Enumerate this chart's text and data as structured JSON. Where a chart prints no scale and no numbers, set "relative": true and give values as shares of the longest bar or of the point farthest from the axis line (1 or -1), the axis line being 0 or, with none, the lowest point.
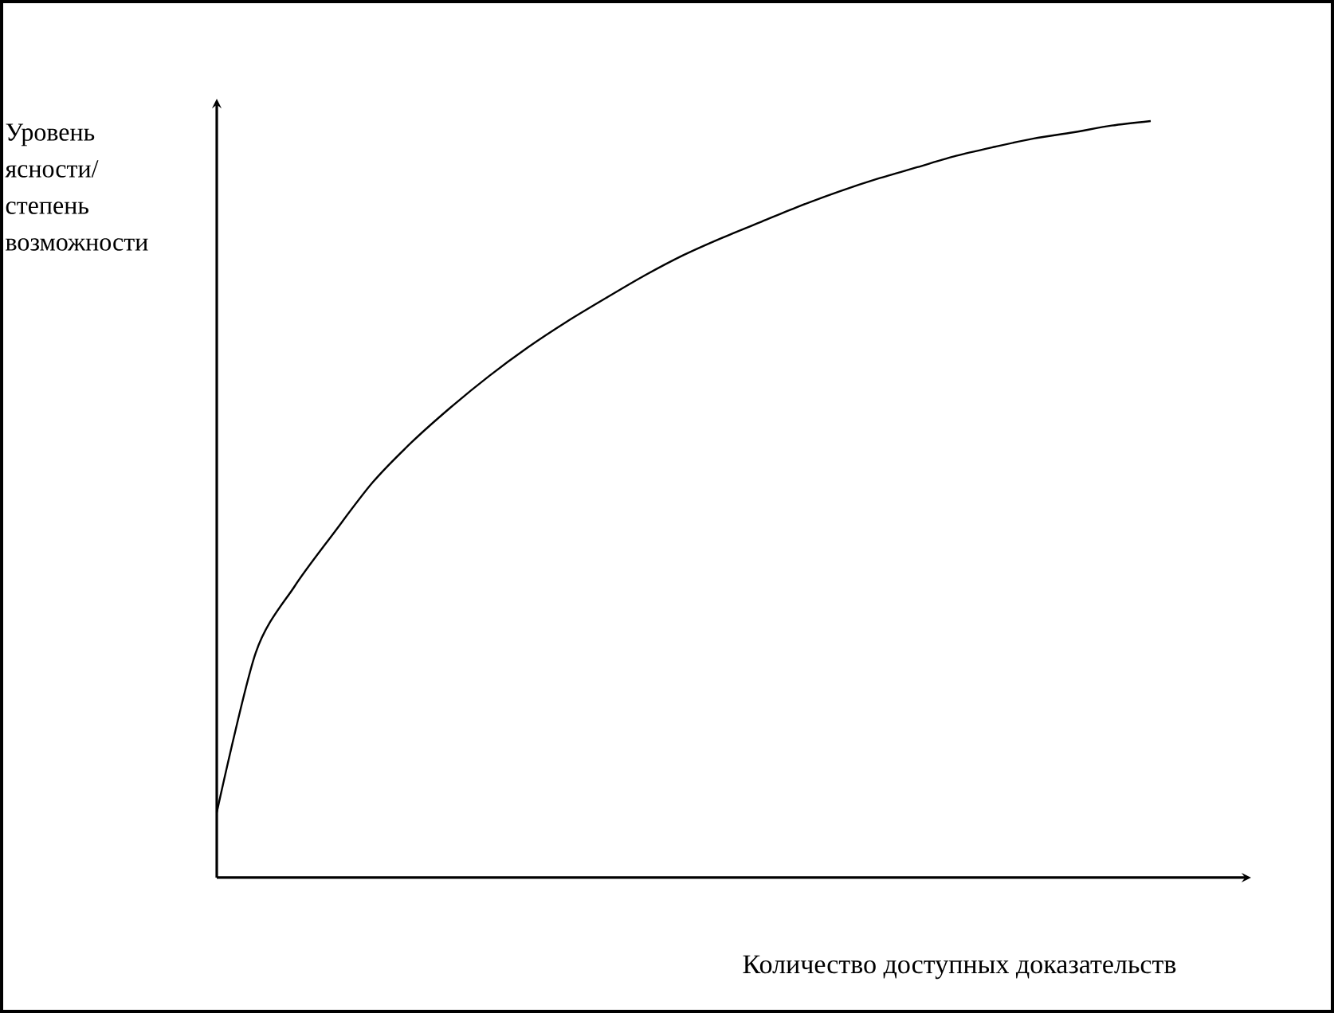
{
  "chart_data": {
    "type": "line",
    "relative": true,
    "xlabel": "Количество доступных доказательств",
    "ylabel": "Уровень ясности/ степень возможности",
    "categories": [
      null,
      null,
      null,
      null,
      null,
      null,
      null,
      null,
      null,
      null,
      null,
      null,
      null,
      null,
      null,
      null,
      null,
      null,
      null,
      null,
      null,
      null,
      null,
      null,
      null
    ],
    "values": [
      0.086,
      0.297,
      0.385,
      0.455,
      0.522,
      0.575,
      0.621,
      0.663,
      0.701,
      0.735,
      0.766,
      0.796,
      0.823,
      0.846,
      0.867,
      0.888,
      0.907,
      0.924,
      0.939,
      0.954,
      0.966,
      0.977,
      0.985,
      0.994,
      1
    ],
    "color": "#000000"
  }
}
